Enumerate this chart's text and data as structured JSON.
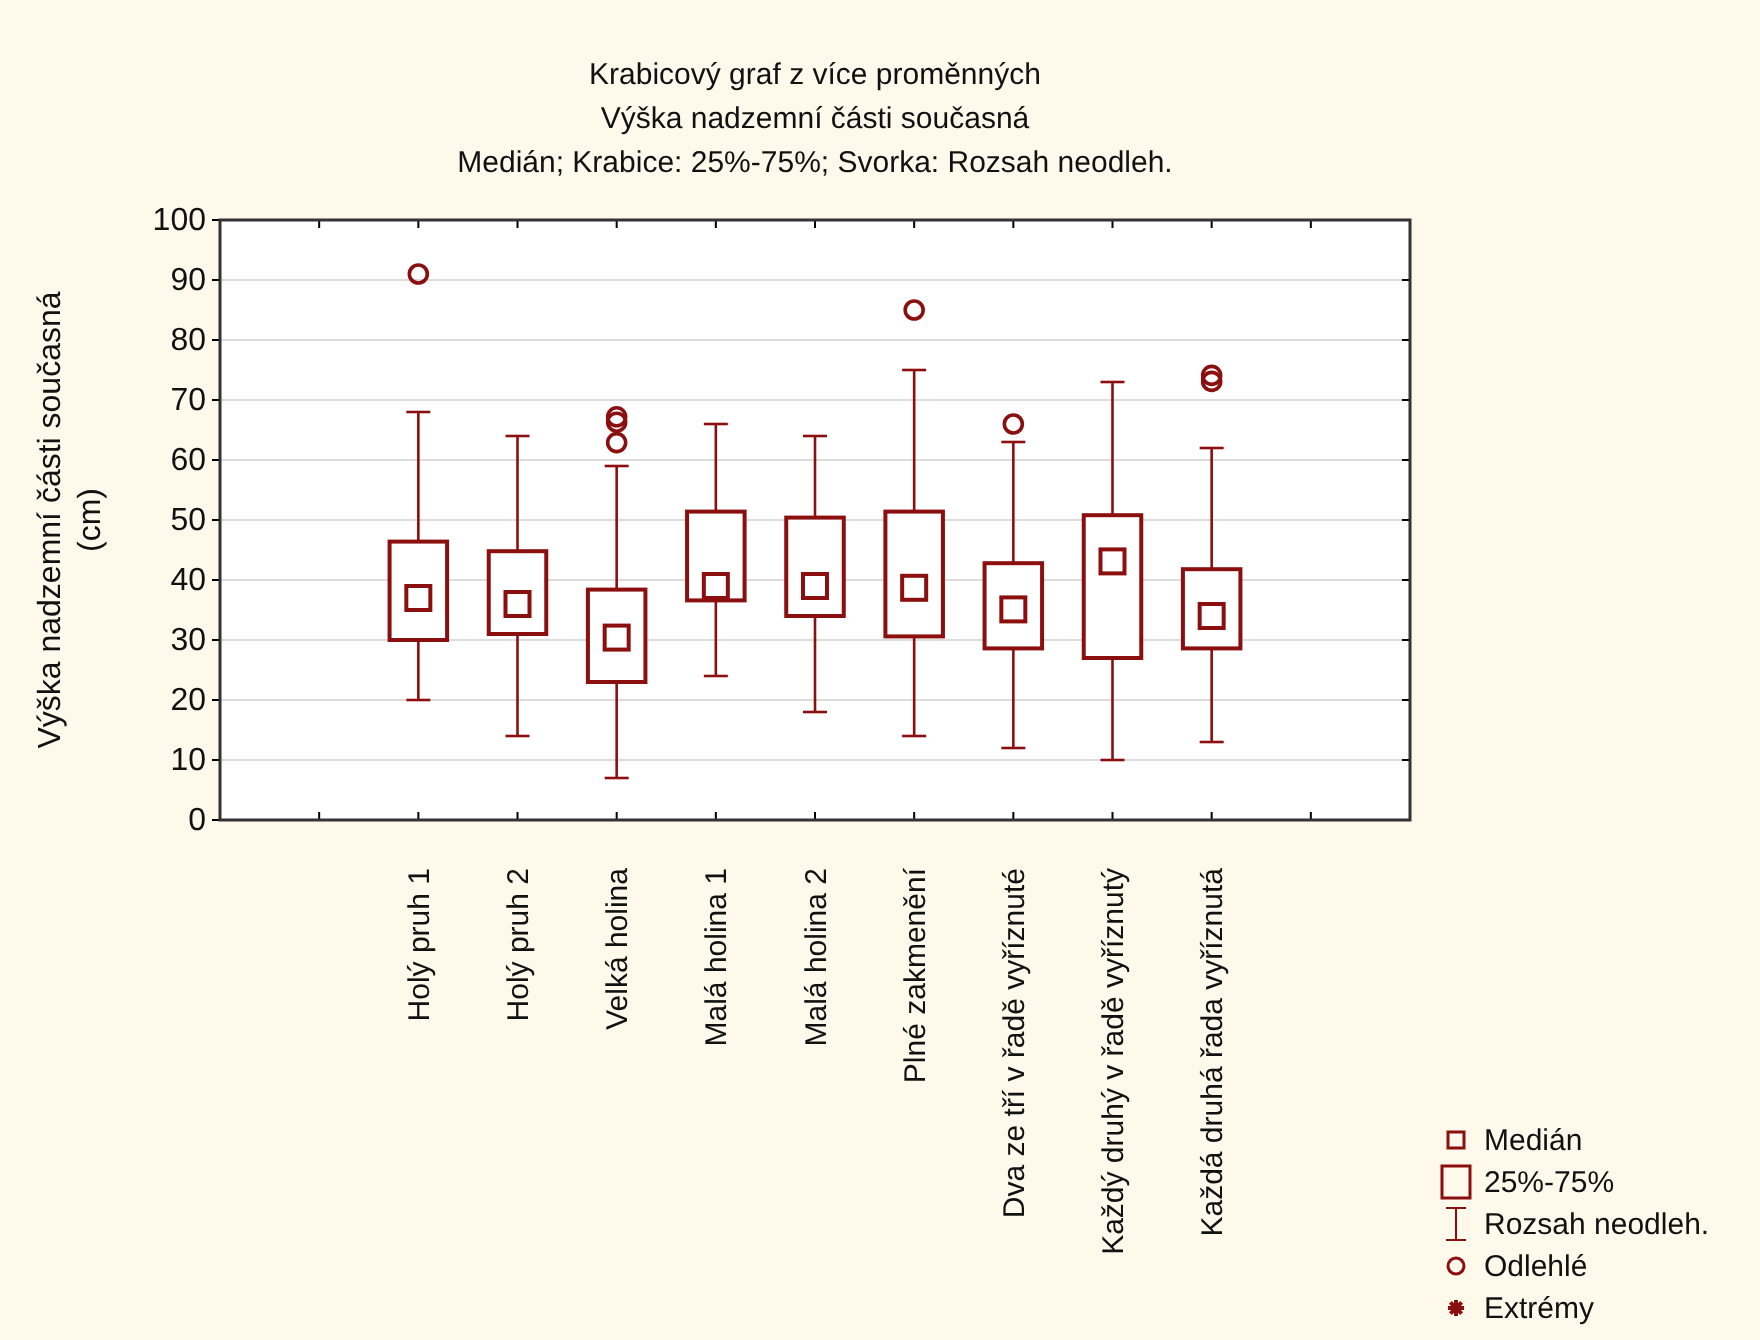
{
  "chart_data": {
    "type": "box",
    "title": "Krabicový graf z více proměnných",
    "subtitle": "Výška nadzemní části současná\nMedián; Krabice: 25%-75%; Svorka: Rozsah neodleh.",
    "ylabel": "Výška nadzemní části současná\n(cm)",
    "categories": [
      null,
      "Holý pruh 1",
      "Holý pruh 2",
      "Velká holina",
      "Malá holina 1",
      "Malá holina 2",
      "Plné zakmenění",
      "Dva ze tří v řadě vyříznuté",
      "Každý druhý v řadě vyříznutý",
      "Každá druhá řada vyříznutá",
      null
    ],
    "series": [
      {
        "color": "#8b0f0f",
        "boxes": [
          null,
          {
            "low": 20,
            "q1": 30,
            "median": 37,
            "q3": 46.4,
            "high": 68,
            "outliers": [
              91
            ]
          },
          {
            "low": 14,
            "q1": 31,
            "median": 36,
            "q3": 44.8,
            "high": 64
          },
          {
            "low": 7,
            "q1": 23,
            "median": 30.4,
            "q3": 38.4,
            "high": 59,
            "outliers": [
              67.2,
              66.3,
              62.9
            ]
          },
          {
            "low": 24,
            "q1": 36.6,
            "median": 39,
            "q3": 51.4,
            "high": 66
          },
          {
            "low": 18,
            "q1": 34,
            "median": 39,
            "q3": 50.4,
            "high": 64
          },
          {
            "low": 14,
            "q1": 30.6,
            "median": 38.7,
            "q3": 51.4,
            "high": 75,
            "outliers": [
              85
            ]
          },
          {
            "low": 12,
            "q1": 28.6,
            "median": 35.1,
            "q3": 42.8,
            "high": 63,
            "outliers": [
              66
            ]
          },
          {
            "low": 10,
            "q1": 27,
            "median": 43.1,
            "q3": 50.8,
            "high": 73
          },
          {
            "low": 13,
            "q1": 28.6,
            "median": 34,
            "q3": 41.8,
            "high": 62,
            "outliers": [
              74.1,
              73.1
            ]
          },
          null
        ]
      }
    ],
    "ylim": [
      0,
      100
    ],
    "yticks": [
      0,
      10,
      20,
      30,
      40,
      50,
      60,
      70,
      80,
      90,
      100
    ],
    "grid": "y",
    "annotations": [
      "Medián",
      "25%-75%",
      "Rozsah neodleh.",
      "Odlehlé",
      "Extrémy"
    ]
  }
}
